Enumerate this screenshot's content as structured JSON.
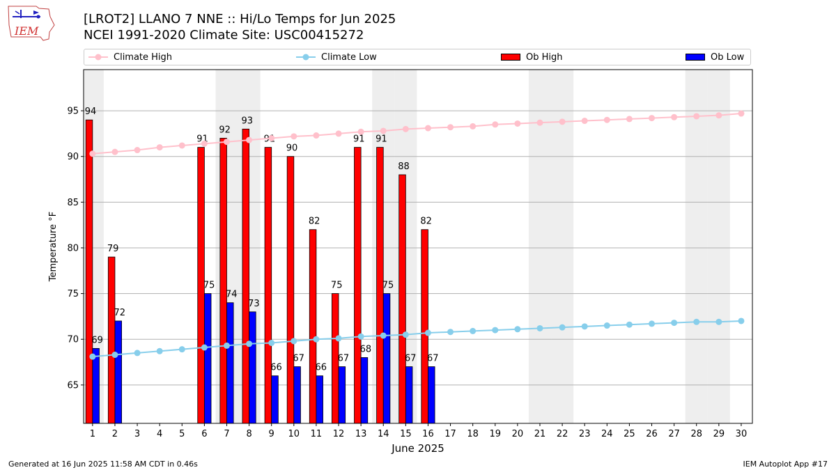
{
  "header": {
    "title_line1": "[LROT2] LLANO 7 NNE :: Hi/Lo Temps for Jun 2025",
    "title_line2": "NCEI 1991-2020 Climate Site: USC00415272"
  },
  "logo": {
    "text": "IEM"
  },
  "footer": {
    "left": "Generated at 16 Jun 2025 11:58 AM CDT in 0.46s",
    "right": "IEM Autoplot App #17"
  },
  "chart_data": {
    "type": "bar",
    "xlabel": "June 2025",
    "ylabel": "Temperature °F",
    "xlim": [
      0.6,
      30.5
    ],
    "ylim": [
      60.8,
      99.5
    ],
    "yticks": [
      65,
      70,
      75,
      80,
      85,
      90,
      95
    ],
    "grid": "horizontal",
    "legend_position": "top",
    "weekend_shading_days": [
      1,
      7,
      8,
      14,
      15,
      21,
      22,
      28,
      29
    ],
    "days": [
      1,
      2,
      3,
      4,
      5,
      6,
      7,
      8,
      9,
      10,
      11,
      12,
      13,
      14,
      15,
      16,
      17,
      18,
      19,
      20,
      21,
      22,
      23,
      24,
      25,
      26,
      27,
      28,
      29,
      30
    ],
    "series": [
      {
        "name": "Climate High",
        "kind": "line",
        "color": "#ffc0cb",
        "values": [
          90.3,
          90.5,
          90.7,
          91.0,
          91.2,
          91.4,
          91.6,
          91.8,
          92.0,
          92.2,
          92.3,
          92.5,
          92.7,
          92.8,
          93.0,
          93.1,
          93.2,
          93.3,
          93.5,
          93.6,
          93.7,
          93.8,
          93.9,
          94.0,
          94.1,
          94.2,
          94.3,
          94.4,
          94.5,
          94.7
        ]
      },
      {
        "name": "Climate Low",
        "kind": "line",
        "color": "#87ceeb",
        "values": [
          68.1,
          68.3,
          68.5,
          68.7,
          68.9,
          69.1,
          69.3,
          69.5,
          69.6,
          69.8,
          70.0,
          70.1,
          70.3,
          70.4,
          70.5,
          70.7,
          70.8,
          70.9,
          71.0,
          71.1,
          71.2,
          71.3,
          71.4,
          71.5,
          71.6,
          71.7,
          71.8,
          71.9,
          71.9,
          72.0
        ]
      },
      {
        "name": "Ob High",
        "kind": "bar",
        "color": "#ff0000",
        "values": [
          94,
          79,
          null,
          null,
          null,
          91,
          92,
          93,
          91,
          90,
          82,
          75,
          91,
          91,
          88,
          82,
          null,
          null,
          null,
          null,
          null,
          null,
          null,
          null,
          null,
          null,
          null,
          null,
          null,
          null
        ]
      },
      {
        "name": "Ob Low",
        "kind": "bar",
        "color": "#0000ff",
        "values": [
          69,
          72,
          null,
          null,
          null,
          75,
          74,
          73,
          66,
          67,
          66,
          67,
          68,
          75,
          67,
          67,
          null,
          null,
          null,
          null,
          null,
          null,
          null,
          null,
          null,
          null,
          null,
          null,
          null,
          null
        ]
      }
    ]
  }
}
